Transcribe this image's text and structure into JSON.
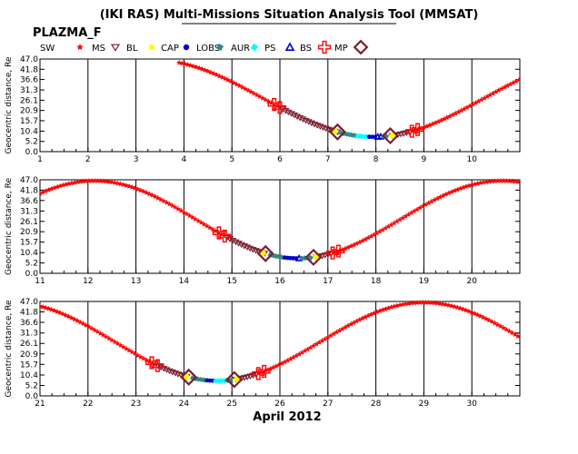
{
  "header": {
    "title": "(IKI RAS) Multi-Missions Situation Analysis Tool (MMSAT)",
    "mission": "PLAZMA_F",
    "xlabel": "April 2012"
  },
  "legend": [
    {
      "label": "SW",
      "symbol": "star",
      "color": "#ff0000"
    },
    {
      "label": "MS",
      "symbol": "tri-down",
      "color": "#7a1f2e"
    },
    {
      "label": "BL",
      "symbol": "dot",
      "color": "#ffff00"
    },
    {
      "label": "CAP",
      "symbol": "dot",
      "color": "#0000cc"
    },
    {
      "label": "LOBS",
      "symbol": "square",
      "color": "#2e8b87"
    },
    {
      "label": "AUR",
      "symbol": "square",
      "color": "#00ffff"
    },
    {
      "label": "PS",
      "symbol": "tri-up",
      "color": "#0000cc"
    },
    {
      "label": "BS",
      "symbol": "cross",
      "color": "#ff0000"
    },
    {
      "label": "MP",
      "symbol": "diamond",
      "color": "#7a1f2e"
    }
  ],
  "chart_data": [
    {
      "type": "scatter",
      "ylabel": "Geocentric distance, Re",
      "xlim": [
        1,
        11
      ],
      "ylim": [
        0,
        47
      ],
      "x_ticks": [
        1,
        2,
        3,
        4,
        5,
        6,
        7,
        8,
        9,
        10
      ],
      "y_ticks": [
        0.0,
        5.2,
        10.4,
        15.7,
        20.9,
        26.1,
        31.3,
        36.6,
        41.8,
        47.0
      ],
      "y_tick_labels": [
        "0.0",
        "5.2",
        "10.4",
        "15.7",
        "20.9",
        "26.1",
        "31.3",
        "36.6",
        "41.8",
        "47.0"
      ],
      "orbit": {
        "start": 3.9,
        "end": 11.0,
        "perigee_x": 7.95,
        "perigee_r": 7.5,
        "apogee_r": 46.5,
        "period": 9.2
      },
      "segments": [
        {
          "name": "SW",
          "from": 3.9,
          "to": 6.0,
          "color": "#ff0000"
        },
        {
          "name": "MS",
          "from": 6.0,
          "to": 7.2,
          "color": "#7a1f2e"
        },
        {
          "name": "LOBS",
          "from": 7.25,
          "to": 7.6,
          "color": "#2e8b87"
        },
        {
          "name": "AUR",
          "from": 7.6,
          "to": 7.85,
          "color": "#00ffff"
        },
        {
          "name": "CAP",
          "from": 7.85,
          "to": 8.0,
          "color": "#0000cc"
        },
        {
          "name": "PS",
          "from": 8.0,
          "to": 8.1,
          "color": "#0000cc"
        },
        {
          "name": "LOBS",
          "from": 8.1,
          "to": 8.25,
          "color": "#2e8b87"
        },
        {
          "name": "MS",
          "from": 8.3,
          "to": 8.75,
          "color": "#7a1f2e"
        },
        {
          "name": "SW",
          "from": 8.75,
          "to": 11.0,
          "color": "#ff0000"
        }
      ],
      "bs_crossings": [
        6.0,
        8.75
      ],
      "mp_crossings": [
        7.2,
        8.3
      ],
      "bl_points": [
        7.15,
        8.35
      ]
    },
    {
      "type": "scatter",
      "ylabel": "Geocentric distance, Re",
      "xlim": [
        11,
        21
      ],
      "ylim": [
        0,
        47
      ],
      "x_ticks": [
        11,
        12,
        13,
        14,
        15,
        16,
        17,
        18,
        19,
        20
      ],
      "y_ticks": [
        0.0,
        5.2,
        10.4,
        15.7,
        20.9,
        26.1,
        31.3,
        36.6,
        41.8,
        47.0
      ],
      "y_tick_labels": [
        "0.0",
        "5.2",
        "10.4",
        "15.7",
        "20.9",
        "26.1",
        "31.3",
        "36.6",
        "41.8",
        "47.0"
      ],
      "orbit": {
        "start": 11.0,
        "end": 21.0,
        "perigee_x": 16.38,
        "perigee_r": 7.5,
        "apogee_r": 46.5,
        "period": 8.5
      },
      "segments": [
        {
          "name": "SW",
          "from": 11.0,
          "to": 14.85,
          "color": "#ff0000"
        },
        {
          "name": "MS",
          "from": 14.85,
          "to": 15.7,
          "color": "#7a1f2e"
        },
        {
          "name": "LOBS",
          "from": 15.75,
          "to": 16.1,
          "color": "#2e8b87"
        },
        {
          "name": "CAP",
          "from": 16.1,
          "to": 16.35,
          "color": "#0000cc"
        },
        {
          "name": "PS",
          "from": 16.35,
          "to": 16.45,
          "color": "#0000cc"
        },
        {
          "name": "LOBS",
          "from": 16.45,
          "to": 16.7,
          "color": "#2e8b87"
        },
        {
          "name": "MS",
          "from": 16.75,
          "to": 17.1,
          "color": "#7a1f2e"
        },
        {
          "name": "SW",
          "from": 17.1,
          "to": 21.0,
          "color": "#ff0000"
        }
      ],
      "bs_crossings": [
        14.85,
        17.1
      ],
      "mp_crossings": [
        15.7,
        16.7
      ],
      "bl_points": [
        15.65,
        16.75
      ]
    },
    {
      "type": "scatter",
      "ylabel": "Geocentric distance, Re",
      "xlim": [
        21,
        31
      ],
      "ylim": [
        0,
        47
      ],
      "x_ticks": [
        21,
        22,
        23,
        24,
        25,
        26,
        27,
        28,
        29,
        30
      ],
      "y_ticks": [
        0.0,
        5.2,
        10.4,
        15.7,
        20.9,
        26.1,
        31.3,
        36.6,
        41.8,
        47.0
      ],
      "y_tick_labels": [
        "0.0",
        "5.2",
        "10.4",
        "15.7",
        "20.9",
        "26.1",
        "31.3",
        "36.6",
        "41.8",
        "47.0"
      ],
      "orbit": {
        "start": 21.0,
        "end": 31.0,
        "perigee_x": 24.7,
        "perigee_r": 7.5,
        "apogee_r": 46.5,
        "period": 8.6
      },
      "segments": [
        {
          "name": "SW",
          "from": 21.0,
          "to": 23.45,
          "color": "#ff0000"
        },
        {
          "name": "MS",
          "from": 23.45,
          "to": 24.1,
          "color": "#7a1f2e"
        },
        {
          "name": "LOBS",
          "from": 24.15,
          "to": 24.45,
          "color": "#2e8b87"
        },
        {
          "name": "CAP",
          "from": 24.45,
          "to": 24.6,
          "color": "#0000cc"
        },
        {
          "name": "AUR",
          "from": 24.6,
          "to": 24.85,
          "color": "#00ffff"
        },
        {
          "name": "LOBS",
          "from": 24.85,
          "to": 25.0,
          "color": "#2e8b87"
        },
        {
          "name": "MS",
          "from": 25.05,
          "to": 25.55,
          "color": "#7a1f2e"
        },
        {
          "name": "SW",
          "from": 25.55,
          "to": 31.0,
          "color": "#ff0000"
        }
      ],
      "bs_crossings": [
        23.45,
        25.55
      ],
      "mp_crossings": [
        24.1,
        25.05
      ],
      "bl_points": [
        24.05,
        25.1
      ]
    }
  ]
}
